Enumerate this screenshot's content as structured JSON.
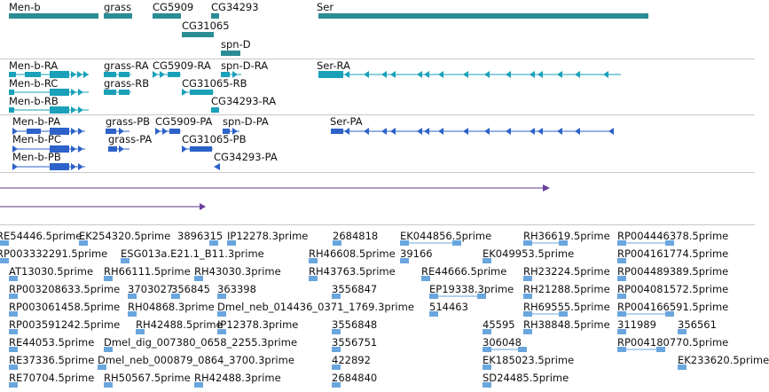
{
  "colors": {
    "gene": "#2b8c94",
    "mrna": "#1aa1b9",
    "protein": "#2d62c8",
    "ruler_line": "#5a3a8a",
    "est": "#6aa6de",
    "separator": "#c8c8c8"
  },
  "genes": [
    {
      "name": "Men-b",
      "bind": "genes.0.name"
    },
    {
      "name": "grass"
    },
    {
      "name": "CG5909"
    },
    {
      "name": "CG34293"
    },
    {
      "name": "Ser"
    },
    {
      "name": "CG31065"
    },
    {
      "name": "spn-D"
    }
  ],
  "transcripts": [
    {
      "name": "Men-b-RA"
    },
    {
      "name": "grass-RA"
    },
    {
      "name": "CG5909-RA"
    },
    {
      "name": "spn-D-RA"
    },
    {
      "name": "Ser-RA"
    },
    {
      "name": "Men-b-RC"
    },
    {
      "name": "grass-RB"
    },
    {
      "name": "CG31065-RB"
    },
    {
      "name": "Men-b-RB"
    },
    {
      "name": "CG34293-RA"
    }
  ],
  "proteins": [
    {
      "name": "Men-b-PA"
    },
    {
      "name": "grass-PB"
    },
    {
      "name": "CG5909-PA"
    },
    {
      "name": "spn-D-PA"
    },
    {
      "name": "Ser-PA"
    },
    {
      "name": "Men-b-PC"
    },
    {
      "name": "grass-PA"
    },
    {
      "name": "CG31065-PB"
    },
    {
      "name": "Men-b-PB"
    },
    {
      "name": "CG34293-PA"
    }
  ],
  "ests": [
    {
      "name": "RE54446.5prime"
    },
    {
      "name": "EK254320.5prime"
    },
    {
      "name": "3896315"
    },
    {
      "name": "IP12278.3prime"
    },
    {
      "name": "2684818"
    },
    {
      "name": "EK044856.5prime"
    },
    {
      "name": "RH36619.5prime"
    },
    {
      "name": "RP004446378.5prime"
    },
    {
      "name": "RP003332291.5prime"
    },
    {
      "name": "ESG013a.E21.1_B11.3prime"
    },
    {
      "name": "RH46608.5prime"
    },
    {
      "name": "39166"
    },
    {
      "name": "EK049953.5prime"
    },
    {
      "name": "RP004161774.5prime"
    },
    {
      "name": "AT13030.5prime"
    },
    {
      "name": "RH66111.5prime"
    },
    {
      "name": "RH43030.3prime"
    },
    {
      "name": "RH43763.5prime"
    },
    {
      "name": "RE44666.5prime"
    },
    {
      "name": "RH23224.5prime"
    },
    {
      "name": "RP004489389.5prime"
    },
    {
      "name": "RP003208633.5prime"
    },
    {
      "name": "3703027"
    },
    {
      "name": "356845"
    },
    {
      "name": "363398"
    },
    {
      "name": "3556847"
    },
    {
      "name": "EP19338.3prime"
    },
    {
      "name": "RH21288.5prime"
    },
    {
      "name": "RP004081572.5prime"
    },
    {
      "name": "RP003061458.5prime"
    },
    {
      "name": "RH04868.3prime"
    },
    {
      "name": "Dmel_neb_014436_0371_1769.3prime"
    },
    {
      "name": "514463"
    },
    {
      "name": "RH69555.5prime"
    },
    {
      "name": "RP004166591.5prime"
    },
    {
      "name": "RP003591242.5prime"
    },
    {
      "name": "RH42488.5prime"
    },
    {
      "name": "IP12378.3prime"
    },
    {
      "name": "3556848"
    },
    {
      "name": "45595"
    },
    {
      "name": "RH38848.5prime"
    },
    {
      "name": "311989"
    },
    {
      "name": "356561"
    },
    {
      "name": "RE44053.5prime"
    },
    {
      "name": "Dmel_dig_007380_0658_2255.3prime"
    },
    {
      "name": "3556751"
    },
    {
      "name": "306048"
    },
    {
      "name": "RP004180770.5prime"
    },
    {
      "name": "RE37336.5prime"
    },
    {
      "name": "Dmel_neb_000879_0864_3700.3prime"
    },
    {
      "name": "422892"
    },
    {
      "name": "EK185023.5prime"
    },
    {
      "name": "EK233620.5prime"
    },
    {
      "name": "RE70704.5prime"
    },
    {
      "name": "RH50567.5prime"
    },
    {
      "name": "RH42488.3prime"
    },
    {
      "name": "2684840"
    },
    {
      "name": "SD24485.5prime"
    }
  ]
}
